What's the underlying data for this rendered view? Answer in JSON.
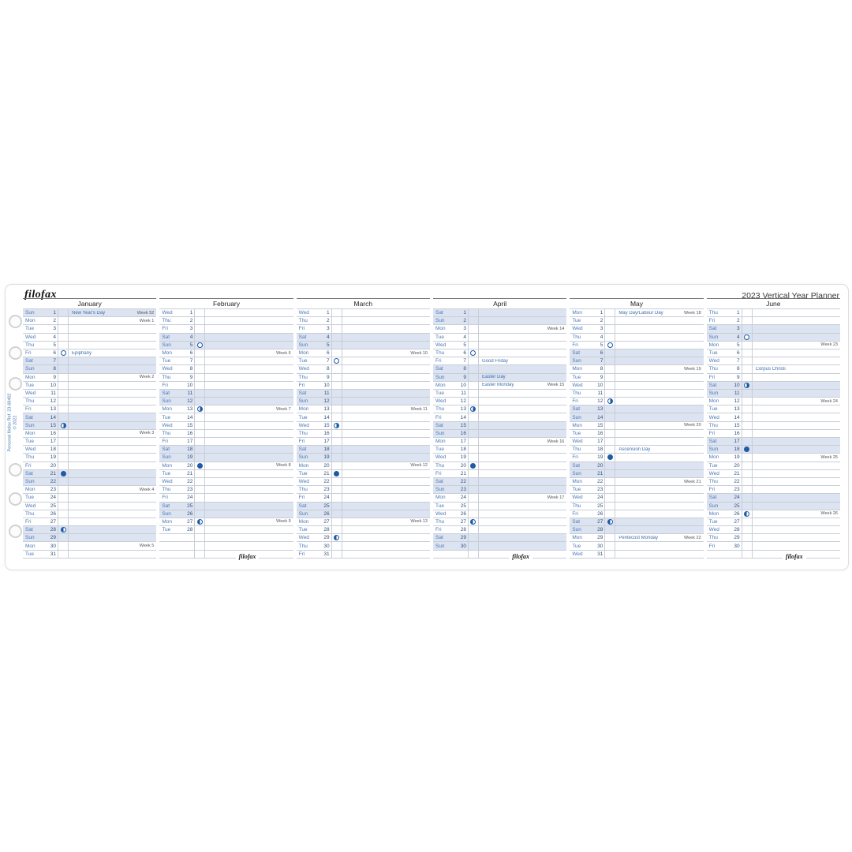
{
  "page": {
    "brand_logo": "filofax",
    "planner_title": "2023 Vertical Year Planner",
    "side_text": [
      "Personal filofax Ref. 23-68402",
      "© 2022"
    ],
    "bottom_brand": "filofax"
  },
  "colors": {
    "day_label_blue": "#4a79b8",
    "day_number_navy": "#33517f",
    "holiday_blue": "#3a6fae",
    "weekend_fill": "#dce3f1",
    "grid_line": "#c9cdd6",
    "moon_blue": "#1d5ba6",
    "week_text": "#555555"
  },
  "moon_icons": {
    "full": "full-moon-icon",
    "last": "last-quarter-moon-icon",
    "new": "new-moon-icon",
    "first": "first-quarter-moon-icon"
  },
  "months": [
    {
      "name": "January",
      "bottom_logo": false,
      "rows": [
        {
          "dow": "Sun",
          "day": "1",
          "weekend": true,
          "holiday": "New Year's Day",
          "week": "Week 52"
        },
        {
          "dow": "Mon",
          "day": "2",
          "week": "Week 1"
        },
        {
          "dow": "Tue",
          "day": "3"
        },
        {
          "dow": "Wed",
          "day": "4"
        },
        {
          "dow": "Thu",
          "day": "5"
        },
        {
          "dow": "Fri",
          "day": "6",
          "moon": "full",
          "holiday": "Epiphany"
        },
        {
          "dow": "Sat",
          "day": "7",
          "weekend": true
        },
        {
          "dow": "Sun",
          "day": "8",
          "weekend": true
        },
        {
          "dow": "Mon",
          "day": "9",
          "week": "Week 2"
        },
        {
          "dow": "Tue",
          "day": "10"
        },
        {
          "dow": "Wed",
          "day": "11"
        },
        {
          "dow": "Thu",
          "day": "12"
        },
        {
          "dow": "Fri",
          "day": "13"
        },
        {
          "dow": "Sat",
          "day": "14",
          "weekend": true
        },
        {
          "dow": "Sun",
          "day": "15",
          "weekend": true,
          "moon": "last"
        },
        {
          "dow": "Mon",
          "day": "16",
          "week": "Week 3"
        },
        {
          "dow": "Tue",
          "day": "17"
        },
        {
          "dow": "Wed",
          "day": "18"
        },
        {
          "dow": "Thu",
          "day": "19"
        },
        {
          "dow": "Fri",
          "day": "20"
        },
        {
          "dow": "Sat",
          "day": "21",
          "weekend": true,
          "moon": "new"
        },
        {
          "dow": "Sun",
          "day": "22",
          "weekend": true
        },
        {
          "dow": "Mon",
          "day": "23",
          "week": "Week 4"
        },
        {
          "dow": "Tue",
          "day": "24"
        },
        {
          "dow": "Wed",
          "day": "25"
        },
        {
          "dow": "Thu",
          "day": "26"
        },
        {
          "dow": "Fri",
          "day": "27"
        },
        {
          "dow": "Sat",
          "day": "28",
          "weekend": true,
          "moon": "first"
        },
        {
          "dow": "Sun",
          "day": "29",
          "weekend": true
        },
        {
          "dow": "Mon",
          "day": "30",
          "week": "Week 5"
        },
        {
          "dow": "Tue",
          "day": "31"
        }
      ]
    },
    {
      "name": "February",
      "bottom_logo": true,
      "rows": [
        {
          "dow": "Wed",
          "day": "1"
        },
        {
          "dow": "Thu",
          "day": "2"
        },
        {
          "dow": "Fri",
          "day": "3"
        },
        {
          "dow": "Sat",
          "day": "4",
          "weekend": true
        },
        {
          "dow": "Sun",
          "day": "5",
          "weekend": true,
          "moon": "full"
        },
        {
          "dow": "Mon",
          "day": "6",
          "week": "Week 6"
        },
        {
          "dow": "Tue",
          "day": "7"
        },
        {
          "dow": "Wed",
          "day": "8"
        },
        {
          "dow": "Thu",
          "day": "9"
        },
        {
          "dow": "Fri",
          "day": "10"
        },
        {
          "dow": "Sat",
          "day": "11",
          "weekend": true
        },
        {
          "dow": "Sun",
          "day": "12",
          "weekend": true
        },
        {
          "dow": "Mon",
          "day": "13",
          "moon": "last",
          "week": "Week 7"
        },
        {
          "dow": "Tue",
          "day": "14"
        },
        {
          "dow": "Wed",
          "day": "15"
        },
        {
          "dow": "Thu",
          "day": "16"
        },
        {
          "dow": "Fri",
          "day": "17"
        },
        {
          "dow": "Sat",
          "day": "18",
          "weekend": true
        },
        {
          "dow": "Sun",
          "day": "19",
          "weekend": true
        },
        {
          "dow": "Mon",
          "day": "20",
          "moon": "new",
          "week": "Week 8"
        },
        {
          "dow": "Tue",
          "day": "21"
        },
        {
          "dow": "Wed",
          "day": "22"
        },
        {
          "dow": "Thu",
          "day": "23"
        },
        {
          "dow": "Fri",
          "day": "24"
        },
        {
          "dow": "Sat",
          "day": "25",
          "weekend": true
        },
        {
          "dow": "Sun",
          "day": "26",
          "weekend": true
        },
        {
          "dow": "Mon",
          "day": "27",
          "moon": "first",
          "week": "Week 9"
        },
        {
          "dow": "Tue",
          "day": "28"
        },
        {},
        {},
        {}
      ]
    },
    {
      "name": "March",
      "bottom_logo": false,
      "rows": [
        {
          "dow": "Wed",
          "day": "1"
        },
        {
          "dow": "Thu",
          "day": "2"
        },
        {
          "dow": "Fri",
          "day": "3"
        },
        {
          "dow": "Sat",
          "day": "4",
          "weekend": true
        },
        {
          "dow": "Sun",
          "day": "5",
          "weekend": true
        },
        {
          "dow": "Mon",
          "day": "6",
          "week": "Week 10"
        },
        {
          "dow": "Tue",
          "day": "7",
          "moon": "full"
        },
        {
          "dow": "Wed",
          "day": "8"
        },
        {
          "dow": "Thu",
          "day": "9"
        },
        {
          "dow": "Fri",
          "day": "10"
        },
        {
          "dow": "Sat",
          "day": "11",
          "weekend": true
        },
        {
          "dow": "Sun",
          "day": "12",
          "weekend": true
        },
        {
          "dow": "Mon",
          "day": "13",
          "week": "Week 11"
        },
        {
          "dow": "Tue",
          "day": "14"
        },
        {
          "dow": "Wed",
          "day": "15",
          "moon": "last"
        },
        {
          "dow": "Thu",
          "day": "16"
        },
        {
          "dow": "Fri",
          "day": "17"
        },
        {
          "dow": "Sat",
          "day": "18",
          "weekend": true
        },
        {
          "dow": "Sun",
          "day": "19",
          "weekend": true
        },
        {
          "dow": "Mon",
          "day": "20",
          "week": "Week 12"
        },
        {
          "dow": "Tue",
          "day": "21",
          "moon": "new"
        },
        {
          "dow": "Wed",
          "day": "22"
        },
        {
          "dow": "Thu",
          "day": "23"
        },
        {
          "dow": "Fri",
          "day": "24"
        },
        {
          "dow": "Sat",
          "day": "25",
          "weekend": true
        },
        {
          "dow": "Sun",
          "day": "26",
          "weekend": true
        },
        {
          "dow": "Mon",
          "day": "27",
          "week": "Week 13"
        },
        {
          "dow": "Tue",
          "day": "28"
        },
        {
          "dow": "Wed",
          "day": "29",
          "moon": "first"
        },
        {
          "dow": "Thu",
          "day": "30"
        },
        {
          "dow": "Fri",
          "day": "31"
        }
      ]
    },
    {
      "name": "April",
      "bottom_logo": true,
      "rows": [
        {
          "dow": "Sat",
          "day": "1",
          "weekend": true
        },
        {
          "dow": "Sun",
          "day": "2",
          "weekend": true
        },
        {
          "dow": "Mon",
          "day": "3",
          "week": "Week 14"
        },
        {
          "dow": "Tue",
          "day": "4"
        },
        {
          "dow": "Wed",
          "day": "5"
        },
        {
          "dow": "Thu",
          "day": "6",
          "moon": "full"
        },
        {
          "dow": "Fri",
          "day": "7",
          "holiday": "Good Friday"
        },
        {
          "dow": "Sat",
          "day": "8",
          "weekend": true
        },
        {
          "dow": "Sun",
          "day": "9",
          "weekend": true,
          "holiday": "Easter Day"
        },
        {
          "dow": "Mon",
          "day": "10",
          "holiday": "Easter Monday",
          "week": "Week 15"
        },
        {
          "dow": "Tue",
          "day": "11"
        },
        {
          "dow": "Wed",
          "day": "12"
        },
        {
          "dow": "Thu",
          "day": "13",
          "moon": "last"
        },
        {
          "dow": "Fri",
          "day": "14"
        },
        {
          "dow": "Sat",
          "day": "15",
          "weekend": true
        },
        {
          "dow": "Sun",
          "day": "16",
          "weekend": true
        },
        {
          "dow": "Mon",
          "day": "17",
          "week": "Week 16"
        },
        {
          "dow": "Tue",
          "day": "18"
        },
        {
          "dow": "Wed",
          "day": "19"
        },
        {
          "dow": "Thu",
          "day": "20",
          "moon": "new"
        },
        {
          "dow": "Fri",
          "day": "21"
        },
        {
          "dow": "Sat",
          "day": "22",
          "weekend": true
        },
        {
          "dow": "Sun",
          "day": "23",
          "weekend": true
        },
        {
          "dow": "Mon",
          "day": "24",
          "week": "Week 17"
        },
        {
          "dow": "Tue",
          "day": "25"
        },
        {
          "dow": "Wed",
          "day": "26"
        },
        {
          "dow": "Thu",
          "day": "27",
          "moon": "first"
        },
        {
          "dow": "Fri",
          "day": "28"
        },
        {
          "dow": "Sat",
          "day": "29",
          "weekend": true
        },
        {
          "dow": "Sun",
          "day": "30",
          "weekend": true
        },
        {}
      ]
    },
    {
      "name": "May",
      "bottom_logo": false,
      "rows": [
        {
          "dow": "Mon",
          "day": "1",
          "holiday": "May Day/Labour Day",
          "week": "Week 18"
        },
        {
          "dow": "Tue",
          "day": "2"
        },
        {
          "dow": "Wed",
          "day": "3"
        },
        {
          "dow": "Thu",
          "day": "4"
        },
        {
          "dow": "Fri",
          "day": "5",
          "moon": "full"
        },
        {
          "dow": "Sat",
          "day": "6",
          "weekend": true
        },
        {
          "dow": "Sun",
          "day": "7",
          "weekend": true
        },
        {
          "dow": "Mon",
          "day": "8",
          "week": "Week 19"
        },
        {
          "dow": "Tue",
          "day": "9"
        },
        {
          "dow": "Wed",
          "day": "10"
        },
        {
          "dow": "Thu",
          "day": "11"
        },
        {
          "dow": "Fri",
          "day": "12",
          "moon": "last"
        },
        {
          "dow": "Sat",
          "day": "13",
          "weekend": true
        },
        {
          "dow": "Sun",
          "day": "14",
          "weekend": true
        },
        {
          "dow": "Mon",
          "day": "15",
          "week": "Week 20"
        },
        {
          "dow": "Tue",
          "day": "16"
        },
        {
          "dow": "Wed",
          "day": "17"
        },
        {
          "dow": "Thu",
          "day": "18",
          "holiday": "Ascension Day"
        },
        {
          "dow": "Fri",
          "day": "19",
          "moon": "new"
        },
        {
          "dow": "Sat",
          "day": "20",
          "weekend": true
        },
        {
          "dow": "Sun",
          "day": "21",
          "weekend": true
        },
        {
          "dow": "Mon",
          "day": "22",
          "week": "Week 21"
        },
        {
          "dow": "Tue",
          "day": "23"
        },
        {
          "dow": "Wed",
          "day": "24"
        },
        {
          "dow": "Thu",
          "day": "25"
        },
        {
          "dow": "Fri",
          "day": "26"
        },
        {
          "dow": "Sat",
          "day": "27",
          "weekend": true,
          "moon": "first"
        },
        {
          "dow": "Sun",
          "day": "28",
          "weekend": true
        },
        {
          "dow": "Mon",
          "day": "29",
          "holiday": "Pentecost Monday",
          "week": "Week 22"
        },
        {
          "dow": "Tue",
          "day": "30"
        },
        {
          "dow": "Wed",
          "day": "31"
        }
      ]
    },
    {
      "name": "June",
      "bottom_logo": true,
      "rows": [
        {
          "dow": "Thu",
          "day": "1"
        },
        {
          "dow": "Fri",
          "day": "2"
        },
        {
          "dow": "Sat",
          "day": "3",
          "weekend": true
        },
        {
          "dow": "Sun",
          "day": "4",
          "weekend": true,
          "moon": "full"
        },
        {
          "dow": "Mon",
          "day": "5",
          "week": "Week 23"
        },
        {
          "dow": "Tue",
          "day": "6"
        },
        {
          "dow": "Wed",
          "day": "7"
        },
        {
          "dow": "Thu",
          "day": "8",
          "holiday": "Corpus Christi"
        },
        {
          "dow": "Fri",
          "day": "9"
        },
        {
          "dow": "Sat",
          "day": "10",
          "weekend": true,
          "moon": "last"
        },
        {
          "dow": "Sun",
          "day": "11",
          "weekend": true
        },
        {
          "dow": "Mon",
          "day": "12",
          "week": "Week 24"
        },
        {
          "dow": "Tue",
          "day": "13"
        },
        {
          "dow": "Wed",
          "day": "14"
        },
        {
          "dow": "Thu",
          "day": "15"
        },
        {
          "dow": "Fri",
          "day": "16"
        },
        {
          "dow": "Sat",
          "day": "17",
          "weekend": true
        },
        {
          "dow": "Sun",
          "day": "18",
          "weekend": true,
          "moon": "new"
        },
        {
          "dow": "Mon",
          "day": "19",
          "week": "Week 25"
        },
        {
          "dow": "Tue",
          "day": "20"
        },
        {
          "dow": "Wed",
          "day": "21"
        },
        {
          "dow": "Thu",
          "day": "22"
        },
        {
          "dow": "Fri",
          "day": "23"
        },
        {
          "dow": "Sat",
          "day": "24",
          "weekend": true
        },
        {
          "dow": "Sun",
          "day": "25",
          "weekend": true
        },
        {
          "dow": "Mon",
          "day": "26",
          "moon": "first",
          "week": "Week 26"
        },
        {
          "dow": "Tue",
          "day": "27"
        },
        {
          "dow": "Wed",
          "day": "28"
        },
        {
          "dow": "Thu",
          "day": "29"
        },
        {
          "dow": "Fri",
          "day": "30"
        },
        {}
      ]
    }
  ]
}
